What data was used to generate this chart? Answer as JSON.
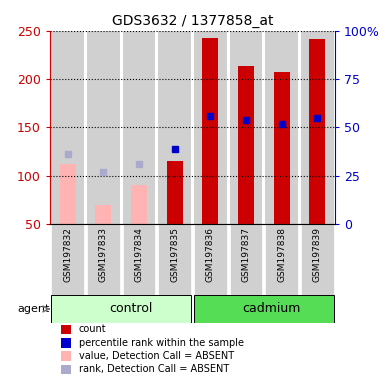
{
  "title": "GDS3632 / 1377858_at",
  "samples": [
    "GSM197832",
    "GSM197833",
    "GSM197834",
    "GSM197835",
    "GSM197836",
    "GSM197837",
    "GSM197838",
    "GSM197839"
  ],
  "count_values": [
    null,
    null,
    null,
    115,
    242,
    213,
    207,
    241
  ],
  "count_absent": [
    112,
    70,
    90,
    null,
    null,
    null,
    null,
    null
  ],
  "percentile_present": [
    null,
    null,
    null,
    128,
    162,
    158,
    153,
    160
  ],
  "percentile_absent": [
    122,
    104,
    112,
    null,
    null,
    null,
    null,
    null
  ],
  "ylim_left": [
    50,
    250
  ],
  "ylim_right": [
    0,
    100
  ],
  "left_ticks": [
    50,
    100,
    150,
    200,
    250
  ],
  "right_ticks": [
    0,
    25,
    50,
    75,
    100
  ],
  "right_tick_labels": [
    "0",
    "25",
    "50",
    "75",
    "100%"
  ],
  "color_count": "#cc0000",
  "color_percentile": "#0000cc",
  "color_count_absent": "#ffb3b3",
  "color_percentile_absent": "#aaaacc",
  "control_color_light": "#ccffcc",
  "cadmium_color": "#55dd55",
  "bar_bg_color": "#d0d0d0",
  "bar_width": 0.45,
  "marker_size": 4,
  "figsize": [
    3.85,
    3.84
  ],
  "dpi": 100
}
